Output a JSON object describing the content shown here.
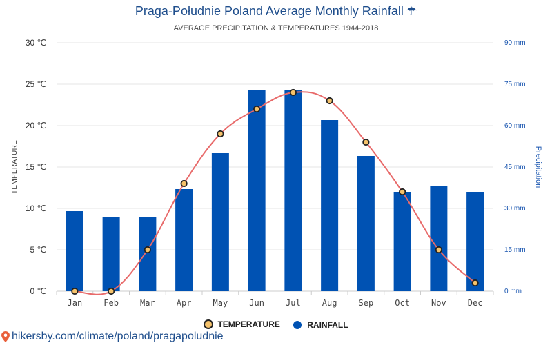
{
  "header": {
    "title": "Praga-Południe Poland Average Monthly Rainfall",
    "title_icon": "umbrella-icon",
    "subtitle": "AVERAGE PRECIPITATION & TEMPERATURES 1944-2018"
  },
  "legend": {
    "temperature_label": "TEMPERATURE",
    "rainfall_label": "RAINFALL"
  },
  "source": {
    "text": "hikersby.com/climate/poland/pragapoludnie",
    "icon": "map-pin-icon"
  },
  "colors": {
    "bar": "#0052b3",
    "line": "#e86a6a",
    "marker_fill": "#f5c26b",
    "marker_stroke": "#222222",
    "title": "#1f4e8c",
    "right_axis": "#1a56b0",
    "grid": "#e6e6e6"
  },
  "chart_data": {
    "type": "bar+line",
    "title": "Praga-Południe Poland Average Monthly Rainfall",
    "subtitle": "AVERAGE PRECIPITATION & TEMPERATURES 1944-2018",
    "categories": [
      "Jan",
      "Feb",
      "Mar",
      "Apr",
      "May",
      "Jun",
      "Jul",
      "Aug",
      "Sep",
      "Oct",
      "Nov",
      "Dec"
    ],
    "series": [
      {
        "name": "RAINFALL",
        "type": "bar",
        "axis": "right",
        "unit": "mm",
        "values": [
          29,
          27,
          27,
          37,
          50,
          73,
          73,
          62,
          49,
          36,
          38,
          36
        ]
      },
      {
        "name": "TEMPERATURE",
        "type": "line",
        "axis": "left",
        "unit": "℃",
        "values": [
          0,
          0,
          5,
          13,
          19,
          22,
          24,
          23,
          18,
          12,
          5,
          1
        ]
      }
    ],
    "left_axis": {
      "label": "TEMPERATURE",
      "min": 0,
      "max": 30,
      "step": 5,
      "tick_labels": [
        "0 ℃",
        "5 ℃",
        "10 ℃",
        "15 ℃",
        "20 ℃",
        "25 ℃",
        "30 ℃"
      ]
    },
    "right_axis": {
      "label": "Precipitation",
      "min": 0,
      "max": 90,
      "step": 15,
      "tick_labels": [
        "0 mm",
        "15 mm",
        "30 mm",
        "45 mm",
        "60 mm",
        "75 mm",
        "90 mm"
      ]
    },
    "grid": true,
    "legend_position": "bottom-center"
  }
}
